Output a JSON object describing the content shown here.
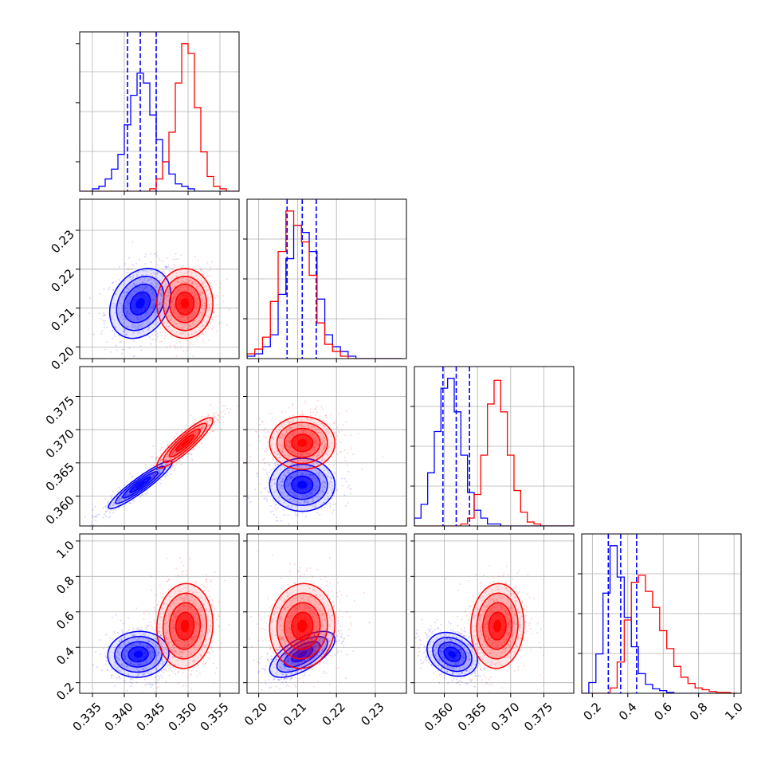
{
  "chart_data": {
    "type": "corner",
    "title": "",
    "grid": true,
    "colors": {
      "series_a": "#0000ff",
      "series_b": "#ff0000",
      "grid": "#b0b0b0",
      "frame": "#000000"
    },
    "parameters": [
      {
        "range": [
          0.333,
          0.358
        ],
        "ticks": [
          {
            "v": 0.335,
            "label": "0.335"
          },
          {
            "v": 0.34,
            "label": "0.340"
          },
          {
            "v": 0.345,
            "label": "0.345"
          },
          {
            "v": 0.35,
            "label": "0.350"
          },
          {
            "v": 0.355,
            "label": "0.355"
          }
        ]
      },
      {
        "range": [
          0.197,
          0.238
        ],
        "ticks": [
          {
            "v": 0.2,
            "label": "0.20"
          },
          {
            "v": 0.21,
            "label": "0.21"
          },
          {
            "v": 0.22,
            "label": "0.22"
          },
          {
            "v": 0.23,
            "label": "0.23"
          }
        ]
      },
      {
        "range": [
          0.3555,
          0.3795
        ],
        "ticks": [
          {
            "v": 0.36,
            "label": "0.360"
          },
          {
            "v": 0.365,
            "label": "0.365"
          },
          {
            "v": 0.37,
            "label": "0.370"
          },
          {
            "v": 0.375,
            "label": "0.375"
          }
        ]
      },
      {
        "range": [
          0.14,
          1.04
        ],
        "ticks": [
          {
            "v": 0.2,
            "label": "0.2"
          },
          {
            "v": 0.4,
            "label": "0.4"
          },
          {
            "v": 0.6,
            "label": "0.6"
          },
          {
            "v": 0.8,
            "label": "0.8"
          },
          {
            "v": 1.0,
            "label": "1.0"
          }
        ]
      }
    ],
    "series": [
      {
        "color": "#0000ff",
        "quantiles": [
          [
            0.3405,
            0.3425,
            0.345
          ],
          [
            0.2073,
            0.2112,
            0.2148
          ],
          [
            0.3598,
            0.3618,
            0.3638
          ],
          [
            0.29,
            0.36,
            0.45
          ]
        ],
        "histograms": [
          {
            "edges": [
              0.333,
              0.334,
              0.335,
              0.336,
              0.337,
              0.338,
              0.339,
              0.34,
              0.341,
              0.342,
              0.343,
              0.344,
              0.345,
              0.346,
              0.347,
              0.348,
              0.349,
              0.35,
              0.351,
              0.352,
              0.353,
              0.354,
              0.355,
              0.356,
              0.357,
              0.358
            ],
            "counts": [
              0,
              0,
              1,
              2,
              5,
              9,
              15,
              27,
              39,
              48,
              44,
              31,
              21,
              12,
              7,
              3,
              2,
              1,
              0,
              0,
              0,
              0,
              0,
              0,
              0
            ]
          },
          {
            "edges": [
              0.197,
              0.199,
              0.201,
              0.203,
              0.205,
              0.207,
              0.209,
              0.211,
              0.213,
              0.215,
              0.217,
              0.219,
              0.221,
              0.223,
              0.225,
              0.227,
              0.229,
              0.231,
              0.233,
              0.235,
              0.237
            ],
            "counts": [
              1,
              2,
              5,
              10,
              27,
              42,
              56,
              53,
              45,
              25,
              10,
              5,
              3,
              1,
              0,
              0,
              0,
              0,
              0,
              0
            ]
          },
          {
            "edges": [
              0.3555,
              0.3565,
              0.3575,
              0.3585,
              0.3595,
              0.3605,
              0.3615,
              0.3625,
              0.3635,
              0.3645,
              0.3655,
              0.3665,
              0.3675,
              0.3685,
              0.3695,
              0.3705,
              0.3715,
              0.3725,
              0.3735,
              0.3745,
              0.3755,
              0.3765,
              0.3775,
              0.3785,
              0.3795
            ],
            "counts": [
              4,
              11,
              27,
              48,
              70,
              75,
              58,
              36,
              17,
              8,
              4,
              1,
              1,
              0,
              0,
              0,
              0,
              0,
              0,
              0,
              0,
              0,
              0,
              0
            ]
          },
          {
            "edges": [
              0.14,
              0.18,
              0.22,
              0.26,
              0.3,
              0.34,
              0.38,
              0.42,
              0.46,
              0.5,
              0.54,
              0.58,
              0.62,
              0.66,
              0.7,
              0.74,
              0.78,
              0.82,
              0.86,
              0.9,
              0.94,
              0.98,
              1.02
            ],
            "counts": [
              0,
              12,
              44,
              112,
              165,
              130,
              85,
              52,
              22,
              10,
              5,
              3,
              1,
              0,
              0,
              0,
              0,
              0,
              0,
              0,
              0,
              0
            ]
          }
        ],
        "pairs": [
          {
            "x": 0,
            "y": 1,
            "mean": [
              0.3425,
              0.2112
            ],
            "sd": [
              0.0024,
              0.0045
            ],
            "rho": 0.25
          },
          {
            "x": 0,
            "y": 2,
            "mean": [
              0.3425,
              0.3617
            ],
            "sd": [
              0.0025,
              0.0018
            ],
            "rho": 0.93
          },
          {
            "x": 1,
            "y": 2,
            "mean": [
              0.2112,
              0.3617
            ],
            "sd": [
              0.0042,
              0.002
            ],
            "rho": 0.0
          },
          {
            "x": 0,
            "y": 3,
            "mean": [
              0.3422,
              0.36
            ],
            "sd": [
              0.0024,
              0.065
            ],
            "rho": 0.05
          },
          {
            "x": 1,
            "y": 3,
            "mean": [
              0.2112,
              0.36
            ],
            "sd": [
              0.0042,
              0.065
            ],
            "rho": 0.65
          },
          {
            "x": 2,
            "y": 3,
            "mean": [
              0.3612,
              0.36
            ],
            "sd": [
              0.0019,
              0.062
            ],
            "rho": -0.25
          }
        ]
      },
      {
        "color": "#ff0000",
        "histograms": [
          {
            "edges": [
              0.333,
              0.334,
              0.335,
              0.336,
              0.337,
              0.338,
              0.339,
              0.34,
              0.341,
              0.342,
              0.343,
              0.344,
              0.345,
              0.346,
              0.347,
              0.348,
              0.349,
              0.35,
              0.351,
              0.352,
              0.353,
              0.354,
              0.355,
              0.356,
              0.357,
              0.358
            ],
            "counts": [
              0,
              0,
              0,
              0,
              0,
              0,
              0,
              0,
              0,
              0,
              0,
              1,
              5,
              12,
              24,
              44,
              60,
              56,
              34,
              16,
              6,
              2,
              1,
              0,
              0
            ]
          },
          {
            "edges": [
              0.197,
              0.199,
              0.201,
              0.203,
              0.205,
              0.207,
              0.209,
              0.211,
              0.213,
              0.215,
              0.217,
              0.219,
              0.221,
              0.223,
              0.225,
              0.227,
              0.229,
              0.231,
              0.233,
              0.235,
              0.237
            ],
            "counts": [
              2,
              4,
              9,
              24,
              45,
              62,
              56,
              49,
              35,
              15,
              6,
              3,
              1,
              0,
              0,
              0,
              0,
              0,
              0,
              0
            ]
          },
          {
            "edges": [
              0.3555,
              0.3565,
              0.3575,
              0.3585,
              0.3595,
              0.3605,
              0.3615,
              0.3625,
              0.3635,
              0.3645,
              0.3655,
              0.3665,
              0.3675,
              0.3685,
              0.3695,
              0.3705,
              0.3715,
              0.3725,
              0.3735,
              0.3745,
              0.3755,
              0.3765,
              0.3775,
              0.3785,
              0.3795
            ],
            "counts": [
              0,
              0,
              0,
              0,
              0,
              0,
              0,
              1,
              4,
              16,
              36,
              62,
              74,
              58,
              36,
              18,
              7,
              2,
              1,
              0,
              0,
              0,
              0,
              0
            ]
          },
          {
            "edges": [
              0.14,
              0.18,
              0.22,
              0.26,
              0.3,
              0.34,
              0.38,
              0.42,
              0.46,
              0.5,
              0.54,
              0.58,
              0.62,
              0.66,
              0.7,
              0.74,
              0.78,
              0.82,
              0.86,
              0.9,
              0.94,
              0.98,
              1.02
            ],
            "counts": [
              0,
              0,
              0,
              0,
              6,
              35,
              82,
              124,
              132,
              114,
              96,
              70,
              50,
              30,
              18,
              11,
              6,
              4,
              2,
              1,
              1,
              0
            ]
          }
        ],
        "pairs": [
          {
            "x": 0,
            "y": 1,
            "mean": [
              0.3495,
              0.2112
            ],
            "sd": [
              0.0022,
              0.0045
            ],
            "rho": 0.0
          },
          {
            "x": 0,
            "y": 2,
            "mean": [
              0.3495,
              0.368
            ],
            "sd": [
              0.0022,
              0.0019
            ],
            "rho": 0.9
          },
          {
            "x": 1,
            "y": 2,
            "mean": [
              0.2112,
              0.368
            ],
            "sd": [
              0.0042,
              0.002
            ],
            "rho": 0.0
          },
          {
            "x": 0,
            "y": 3,
            "mean": [
              0.3495,
              0.52
            ],
            "sd": [
              0.0022,
              0.12
            ],
            "rho": 0.05
          },
          {
            "x": 1,
            "y": 3,
            "mean": [
              0.2112,
              0.52
            ],
            "sd": [
              0.0042,
              0.12
            ],
            "rho": 0.05
          },
          {
            "x": 2,
            "y": 3,
            "mean": [
              0.368,
              0.52
            ],
            "sd": [
              0.002,
              0.12
            ],
            "rho": 0.05
          }
        ]
      }
    ]
  }
}
